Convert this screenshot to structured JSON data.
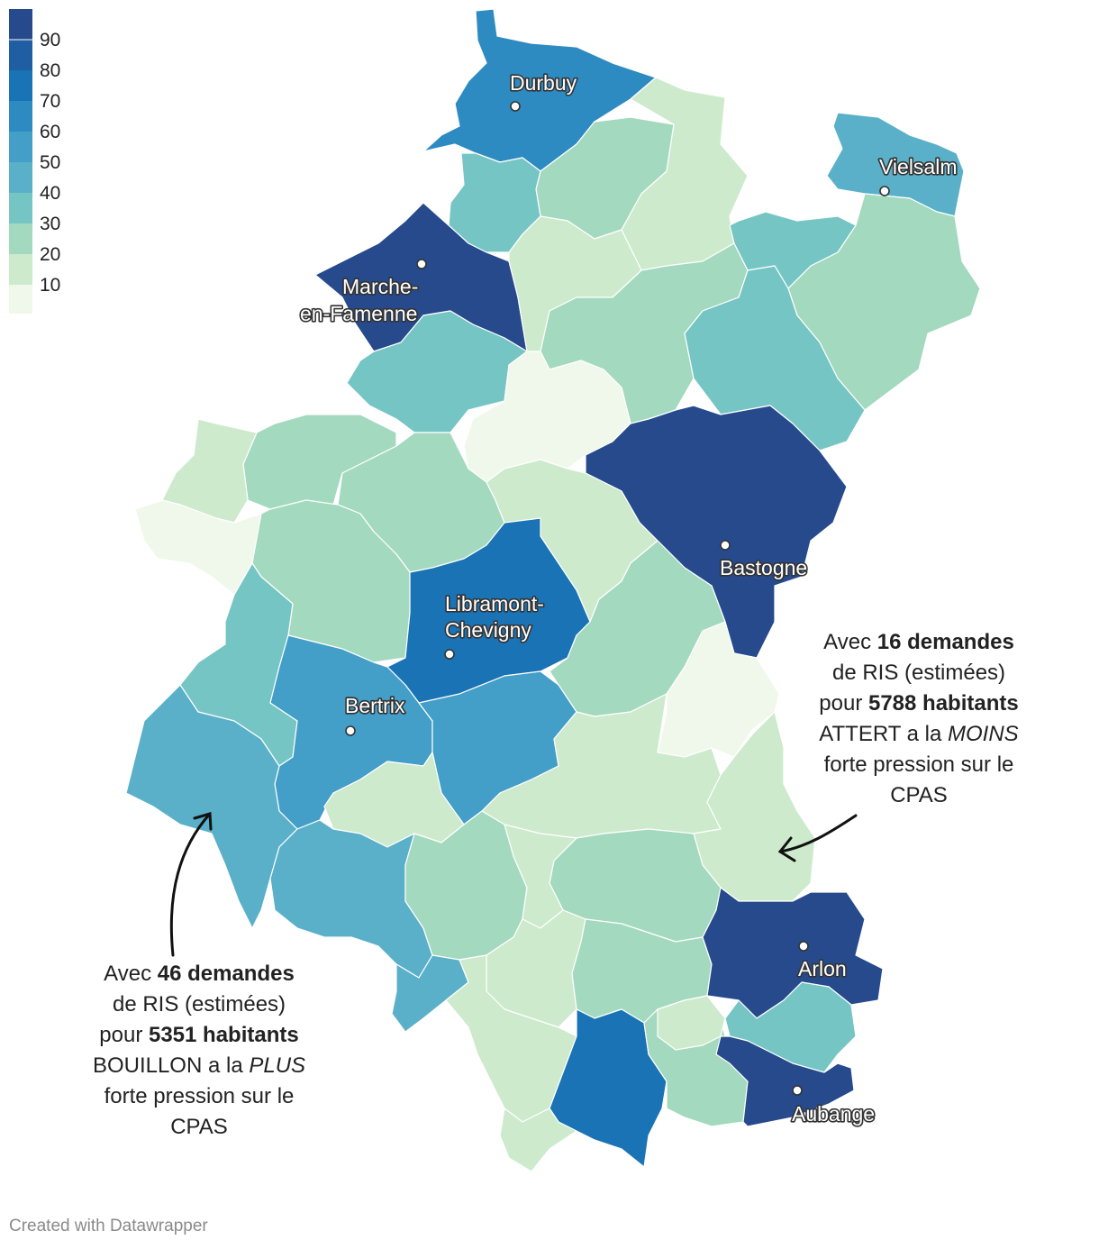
{
  "colors": {
    "c0": "#eff8ea",
    "c10": "#cdeacd",
    "c20": "#a3d9bf",
    "c30": "#75c5c4",
    "c40": "#59b0c8",
    "c50": "#439ec8",
    "c60": "#2d8bc1",
    "c70": "#1a73b4",
    "c80": "#1f5ea3",
    "c90": "#264a8c"
  },
  "legend": {
    "labels": [
      "90",
      "80",
      "70",
      "60",
      "50",
      "40",
      "30",
      "20",
      "10"
    ]
  },
  "cities": [
    {
      "id": "durbuy",
      "name": "Durbuy"
    },
    {
      "id": "vielsalm",
      "name": "Vielsalm"
    },
    {
      "id": "marche",
      "name_line1": "Marche-",
      "name_line2": "en-Famenne"
    },
    {
      "id": "bastogne",
      "name": "Bastogne"
    },
    {
      "id": "libramont",
      "name_line1": "Libramont-",
      "name_line2": "Chevigny"
    },
    {
      "id": "bertrix",
      "name": "Bertrix"
    },
    {
      "id": "arlon",
      "name": "Arlon"
    },
    {
      "id": "aubange",
      "name": "Aubange"
    }
  ],
  "annotations": {
    "attert": {
      "p1": "Avec ",
      "b1": "16 demandes",
      "p2": "de RIS (estimées)",
      "p3": "pour ",
      "b2": "5788 habitants",
      "p4": "ATTERT a la ",
      "i1": "MOINS",
      "p5": "forte pression sur le",
      "p6": "CPAS"
    },
    "bouillon": {
      "p1": "Avec ",
      "b1": "46 demandes",
      "p2": "de RIS (estimées)",
      "p3": "pour ",
      "b2": "5351 habitants",
      "p4": "BOUILLON a la ",
      "i1": "PLUS",
      "p5": "forte pression sur le",
      "p6": "CPAS"
    }
  },
  "credit": "Created with Datawrapper"
}
